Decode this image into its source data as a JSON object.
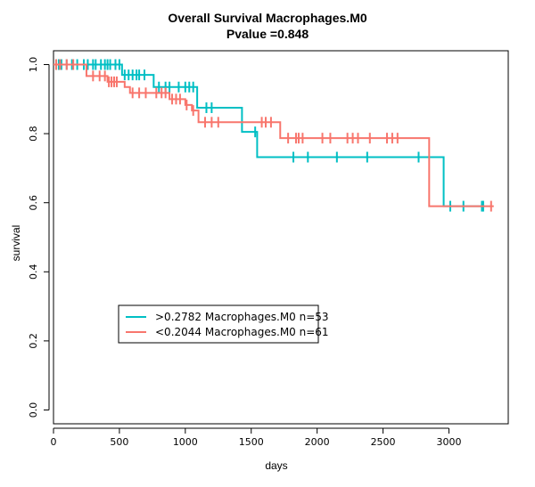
{
  "chart_data": {
    "type": "line",
    "title": "Overall Survival Macrophages.M0",
    "subtitle": "Pvalue =0.848",
    "xlabel": "days",
    "ylabel": "survival",
    "xlim": [
      0,
      3450
    ],
    "ylim": [
      -0.04,
      1.04
    ],
    "xticks": [
      0,
      500,
      1000,
      1500,
      2000,
      2500,
      3000
    ],
    "yticks": [
      0.0,
      0.2,
      0.4,
      0.6,
      0.8,
      1.0
    ],
    "xtick_labels": [
      "0",
      "500",
      "1000",
      "1500",
      "2000",
      "2500",
      "3000"
    ],
    "ytick_labels": [
      "0.0",
      "0.2",
      "0.4",
      "0.6",
      "0.8",
      "1.0"
    ],
    "legend_position": "bottom-left",
    "series": [
      {
        "name": ">0.2782 Macrophages.M0 n=53",
        "color": "#00BFC4",
        "steps": [
          [
            0,
            1.0
          ],
          [
            520,
            0.97
          ],
          [
            760,
            0.935
          ],
          [
            1090,
            0.875
          ],
          [
            1430,
            0.805
          ],
          [
            1545,
            0.732
          ],
          [
            2960,
            0.59
          ],
          [
            3270,
            0.59
          ]
        ],
        "censor_x": [
          20,
          40,
          60,
          100,
          140,
          180,
          230,
          260,
          300,
          320,
          360,
          390,
          410,
          430,
          470,
          500,
          540,
          570,
          600,
          630,
          650,
          690,
          800,
          850,
          880,
          950,
          1000,
          1030,
          1060,
          1160,
          1200,
          1530,
          1820,
          1930,
          2150,
          2380,
          2770,
          3010,
          3110,
          3250,
          3260
        ]
      },
      {
        "name": "<0.2044 Macrophages.M0 n=61",
        "color": "#F8766D",
        "steps": [
          [
            0,
            1.0
          ],
          [
            250,
            0.967
          ],
          [
            410,
            0.95
          ],
          [
            540,
            0.935
          ],
          [
            580,
            0.918
          ],
          [
            880,
            0.9
          ],
          [
            1000,
            0.883
          ],
          [
            1050,
            0.867
          ],
          [
            1100,
            0.833
          ],
          [
            1720,
            0.787
          ],
          [
            2850,
            0.59
          ],
          [
            3340,
            0.59
          ]
        ],
        "censor_x": [
          20,
          50,
          100,
          150,
          300,
          350,
          390,
          420,
          440,
          460,
          480,
          600,
          650,
          700,
          780,
          820,
          850,
          900,
          930,
          960,
          1010,
          1060,
          1150,
          1200,
          1250,
          1580,
          1610,
          1650,
          1780,
          1840,
          1860,
          1890,
          2040,
          2100,
          2230,
          2270,
          2310,
          2400,
          2530,
          2570,
          2610,
          3320
        ]
      }
    ]
  }
}
